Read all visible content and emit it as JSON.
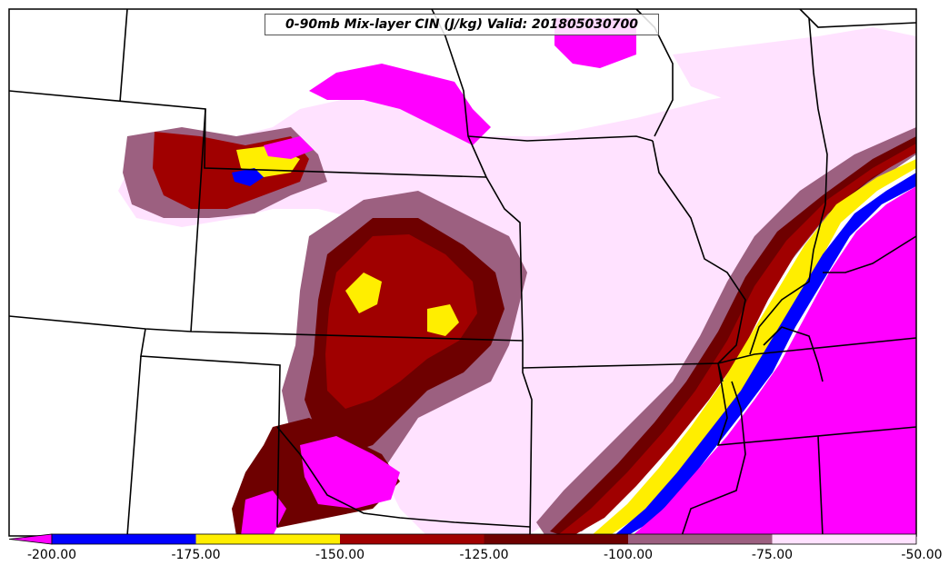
{
  "title": "0-90mb Mix-layer CIN (J/kg) Valid: 201805030700",
  "colorbar": {
    "ticks": [
      "-200.00",
      "-175.00",
      "-150.00",
      "-125.00",
      "-100.00",
      "-75.00",
      "-50.00"
    ],
    "bins": [
      {
        "color": "#0000ff"
      },
      {
        "color": "#ffee00"
      },
      {
        "color": "#a00000"
      },
      {
        "color": "#6e0000"
      },
      {
        "color": "#9c6080"
      },
      {
        "color": "#ffe2ff"
      }
    ],
    "extend_color": "#ff00ff"
  },
  "colors": {
    "magenta": "#ff00ff",
    "blue": "#0000ff",
    "yellow": "#ffee00",
    "red": "#a00000",
    "darkred": "#6e0000",
    "mauve": "#9c6080",
    "pink": "#ffe2ff",
    "boundary": "#000000"
  }
}
